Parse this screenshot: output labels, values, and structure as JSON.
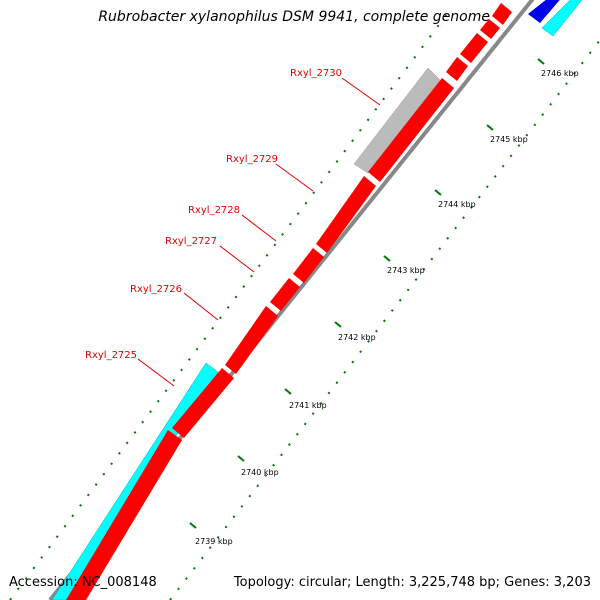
{
  "header": {
    "title": "Rubrobacter xylanophilus DSM 9941, complete genome"
  },
  "footer": {
    "accession": "Accession: NC_008148",
    "summary": "Topology: circular; Length: 3,225,748 bp; Genes: 3,203"
  },
  "gene_labels": [
    "Rxyl_2730",
    "Rxyl_2729",
    "Rxyl_2728",
    "Rxyl_2727",
    "Rxyl_2726",
    "Rxyl_2725"
  ],
  "scale_labels": [
    "2746 kbp",
    "2745 kbp",
    "2744 kbp",
    "2743 kbp",
    "2742 kbp",
    "2741 kbp",
    "2740 kbp",
    "2739 kbp"
  ],
  "colors": {
    "cds": "#ff0000",
    "rna": "#bbbbbb",
    "other_strand": "#00ffff",
    "blue_feature": "#0000ee",
    "backbone": "#888888",
    "tick": "#007700",
    "label": "#e00000"
  }
}
